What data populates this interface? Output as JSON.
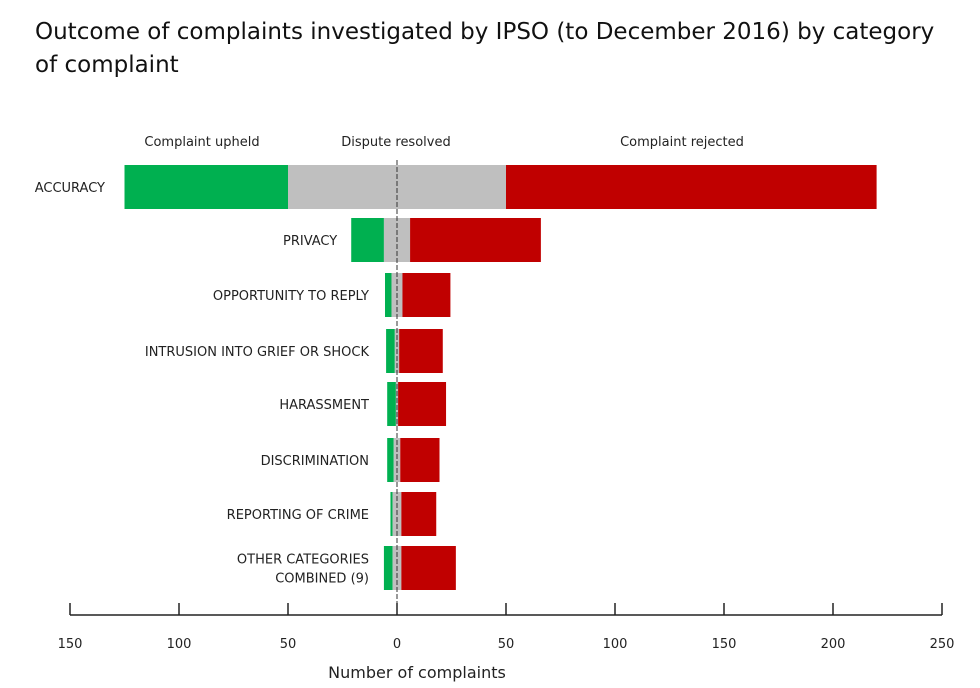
{
  "chart_data": {
    "type": "bar",
    "orientation": "horizontal-diverging-stacked",
    "title": "Outcome of complaints investigated by IPSO (to December 2016) by category of complaint",
    "xlabel": "Number of complaints",
    "xlim": [
      -150,
      250
    ],
    "xticks": [
      -150,
      -100,
      -50,
      0,
      50,
      100,
      150,
      200,
      250
    ],
    "xtick_labels": [
      "150",
      "100",
      "50",
      "0",
      "50",
      "100",
      "150",
      "200",
      "250"
    ],
    "legend": [
      "Complaint upheld",
      "Dispute resolved",
      "Complaint rejected"
    ],
    "colors": {
      "upheld": "#00b050",
      "resolved": "#bfbfbf",
      "rejected": "#c00000"
    },
    "categories": [
      "ACCURACY",
      "PRIVACY",
      "OPPORTUNITY TO REPLY",
      "INTRUSION INTO GRIEF OR SHOCK",
      "HARASSMENT",
      "DISCRIMINATION",
      "REPORTING OF CRIME",
      "OTHER CATEGORIES COMBINED (9)"
    ],
    "series": [
      {
        "name": "Complaint upheld",
        "values": [
          75,
          15,
          3,
          4,
          4,
          3,
          1,
          4
        ]
      },
      {
        "name": "Dispute resolved",
        "values": [
          100,
          12,
          5,
          2,
          1,
          3,
          4,
          4
        ]
      },
      {
        "name": "Complaint rejected",
        "values": [
          170,
          60,
          22,
          20,
          22,
          18,
          16,
          25
        ]
      }
    ]
  }
}
